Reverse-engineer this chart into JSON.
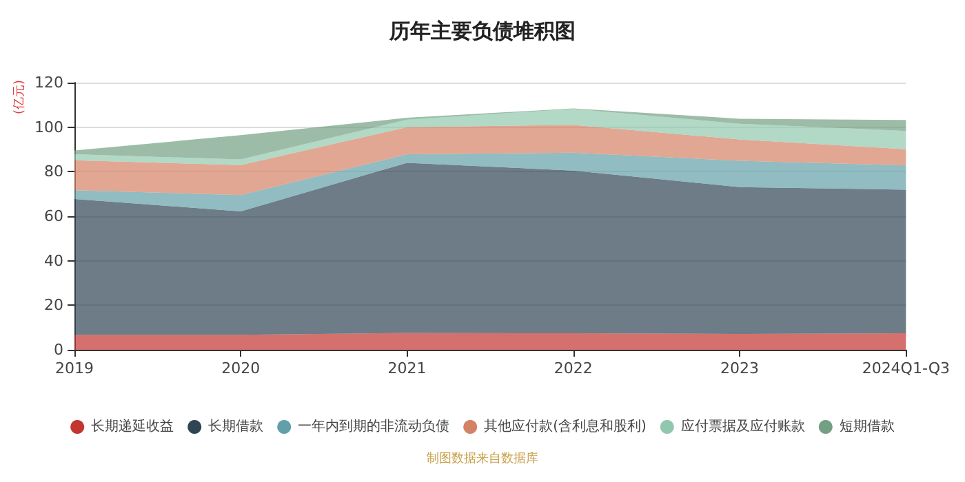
{
  "chart_data": {
    "type": "area",
    "title": "历年主要负债堆积图",
    "ylabel": "(亿元)",
    "categories": [
      "2019",
      "2020",
      "2021",
      "2022",
      "2023",
      "2024Q1-Q3"
    ],
    "stacked": true,
    "series": [
      {
        "name": "长期递延收益",
        "color": "#c23531",
        "values": [
          6.7,
          6.7,
          7.6,
          7.4,
          7.1,
          7.4
        ]
      },
      {
        "name": "长期借款",
        "color": "#2f4554",
        "values": [
          61.0,
          55.5,
          76.4,
          73.1,
          66.0,
          64.5
        ]
      },
      {
        "name": "一年内到期的非流动负债",
        "color": "#61a0a8",
        "values": [
          4.0,
          7.3,
          3.8,
          8.0,
          11.8,
          10.9
        ]
      },
      {
        "name": "其他应付款(含利息和股利)",
        "color": "#d48265",
        "values": [
          13.4,
          13.5,
          12.2,
          12.5,
          9.6,
          7.3
        ]
      },
      {
        "name": "应付票据及应付账款",
        "color": "#91c7ae",
        "values": [
          2.7,
          2.5,
          3.4,
          7.2,
          7.0,
          8.2
        ]
      },
      {
        "name": "短期借款",
        "color": "#749f83",
        "values": [
          1.7,
          10.9,
          0.8,
          0.2,
          2.3,
          4.9
        ]
      }
    ],
    "ylim": [
      0,
      120
    ],
    "yticks": [
      0,
      20,
      40,
      60,
      80,
      100,
      120
    ],
    "grid": "y",
    "legend": "bottom",
    "marker": "none",
    "annotations": [
      "制图数据来自数据库"
    ]
  }
}
